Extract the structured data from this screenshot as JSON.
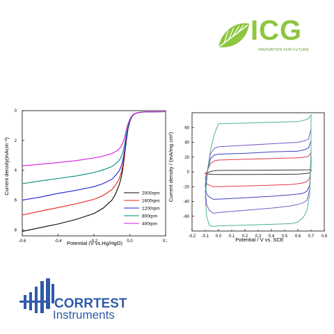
{
  "logos": {
    "icg": {
      "name": "ICG",
      "tagline": "INNOVATION FOR FUTURE",
      "color": "#8dc63f"
    },
    "corrtest": {
      "name": "CORRTEST",
      "subtitle": "Instruments",
      "color": "#2e5aa8"
    }
  },
  "chart_data": [
    {
      "type": "line",
      "title": "",
      "xlabel": "Potential (V vs.Hg/HgO)",
      "ylabel": "Current density(mAcm⁻²)",
      "xlim": [
        -0.6,
        0.2
      ],
      "ylim": [
        8.4,
        0
      ],
      "y_inverted": true,
      "x_ticks": [
        "-0.6",
        "-0.4",
        "-0.2",
        "0.0",
        "0.2"
      ],
      "y_ticks": [
        "0",
        "2",
        "4",
        "6",
        "8"
      ],
      "grid": false,
      "legend_position": "bottom-right",
      "x": [
        -0.6,
        -0.5,
        -0.4,
        -0.3,
        -0.2,
        -0.15,
        -0.1,
        -0.08,
        -0.06,
        -0.05,
        -0.04,
        -0.03,
        -0.02,
        -0.01,
        0.0,
        0.01,
        0.02,
        0.04,
        0.07,
        0.1,
        0.2
      ],
      "series": [
        {
          "name": "2000rpm",
          "color": "#000000",
          "values": [
            8.1,
            7.85,
            7.6,
            7.3,
            6.9,
            6.55,
            6.0,
            5.6,
            5.0,
            4.6,
            4.0,
            3.1,
            2.1,
            1.25,
            0.75,
            0.45,
            0.28,
            0.15,
            0.1,
            0.08,
            0.07
          ]
        },
        {
          "name": "1600rpm",
          "color": "#e8211b",
          "values": [
            7.0,
            6.75,
            6.5,
            6.25,
            5.95,
            5.7,
            5.3,
            5.0,
            4.6,
            4.25,
            3.75,
            2.95,
            2.0,
            1.2,
            0.72,
            0.44,
            0.27,
            0.15,
            0.1,
            0.08,
            0.07
          ]
        },
        {
          "name": "1200rpm",
          "color": "#1f22d6",
          "values": [
            6.0,
            5.8,
            5.55,
            5.35,
            5.1,
            4.9,
            4.6,
            4.35,
            4.05,
            3.8,
            3.4,
            2.75,
            1.9,
            1.15,
            0.7,
            0.43,
            0.26,
            0.15,
            0.1,
            0.08,
            0.07
          ]
        },
        {
          "name": "800rpm",
          "color": "#008a7a",
          "values": [
            4.9,
            4.72,
            4.55,
            4.38,
            4.15,
            3.98,
            3.75,
            3.58,
            3.35,
            3.15,
            2.85,
            2.35,
            1.65,
            1.05,
            0.66,
            0.41,
            0.26,
            0.15,
            0.1,
            0.08,
            0.07
          ]
        },
        {
          "name": "400rpm",
          "color": "#d21ae0",
          "values": [
            3.7,
            3.6,
            3.48,
            3.35,
            3.18,
            3.05,
            2.88,
            2.75,
            2.58,
            2.42,
            2.2,
            1.85,
            1.35,
            0.9,
            0.58,
            0.38,
            0.25,
            0.15,
            0.1,
            0.08,
            0.07
          ]
        }
      ]
    },
    {
      "type": "line",
      "title": "",
      "xlabel": "Potential / V vs. SCE",
      "ylabel": "Current density / (mA/mg cm²)",
      "xlim": [
        -0.2,
        0.8
      ],
      "ylim": [
        -80,
        80
      ],
      "x_ticks": [
        "-0.2",
        "-0.1",
        "0.0",
        "0.1",
        "0.2",
        "0.3",
        "0.4",
        "0.5",
        "0.6",
        "0.7",
        "0.8"
      ],
      "y_ticks": [
        "60",
        "40",
        "20",
        "0",
        "-20",
        "-40",
        "-60"
      ],
      "grid": false,
      "legend": false,
      "x": [
        -0.1,
        -0.08,
        -0.06,
        -0.03,
        0.0,
        0.2,
        0.4,
        0.6,
        0.65,
        0.68,
        0.7,
        0.7,
        0.69,
        0.67,
        0.64,
        0.6,
        0.55,
        0.4,
        0.2,
        0.0,
        -0.04,
        -0.07,
        -0.09,
        -0.1
      ],
      "series": [
        {
          "name": "",
          "color": "#333333",
          "values": [
            -2,
            -1,
            0.5,
            1.5,
            2,
            2.2,
            2.4,
            2.6,
            2.7,
            2.8,
            3,
            1,
            -1,
            -2,
            -2.5,
            -3,
            -3.2,
            -3.4,
            -3.5,
            -3.6,
            -3.4,
            -3,
            -2.5,
            -2
          ]
        },
        {
          "name": "",
          "color": "#e0384a",
          "values": [
            -8,
            4,
            11,
            15,
            16,
            17,
            18,
            19,
            20,
            21,
            26,
            8,
            -8,
            -13,
            -15,
            -16,
            -17,
            -18,
            -19,
            -20,
            -20,
            -18,
            -16,
            -8
          ]
        },
        {
          "name": "",
          "color": "#3e3fc0",
          "values": [
            -18,
            4,
            18,
            23,
            24,
            25,
            27,
            28,
            30,
            32,
            42,
            18,
            -18,
            -26,
            -29,
            -30,
            -31,
            -33,
            -35,
            -37,
            -37,
            -34,
            -30,
            -18
          ]
        },
        {
          "name": "",
          "color": "#7a55c9",
          "values": [
            -26,
            6,
            25,
            32,
            34,
            36,
            38,
            40,
            42,
            44,
            58,
            24,
            -24,
            -38,
            -42,
            -44,
            -46,
            -49,
            -52,
            -55,
            -56,
            -52,
            -44,
            -26
          ]
        },
        {
          "name": "",
          "color": "#4cb58a",
          "values": [
            -34,
            5,
            30,
            52,
            65,
            66,
            67,
            68,
            70,
            72,
            77,
            30,
            -30,
            -52,
            -62,
            -68,
            -70,
            -71,
            -72,
            -73,
            -74,
            -72,
            -60,
            -34
          ]
        }
      ]
    }
  ]
}
